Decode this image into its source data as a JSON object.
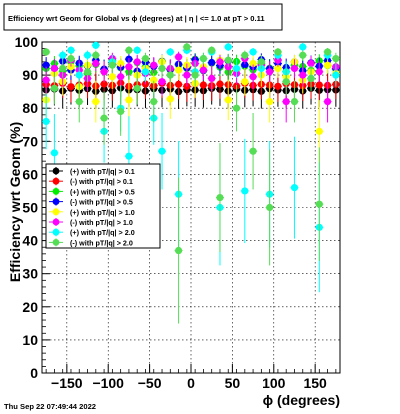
{
  "chart_data": {
    "type": "scatter",
    "title": "Efficiency wrt Geom for Global vs ϕ (degrees) at | η | <= 1.0 at pT > 0.11",
    "xlabel": "ϕ (degrees)",
    "ylabel": "Efficiency wrt Geom (%)",
    "xlim": [
      -180,
      180
    ],
    "ylim": [
      0,
      100
    ],
    "xticks": [
      -150,
      -100,
      -50,
      0,
      50,
      100,
      150
    ],
    "xtick_labels": [
      "−150",
      "−100",
      "−50",
      "0",
      "50",
      "100",
      "150"
    ],
    "yticks": [
      0,
      10,
      20,
      30,
      40,
      50,
      60,
      70,
      80,
      90,
      100
    ],
    "ytick_labels": [
      "0",
      "10",
      "20",
      "30",
      "40",
      "50",
      "60",
      "70",
      "80",
      "90",
      "100"
    ],
    "grid": true,
    "legend_position": "left, middle",
    "timestamp": "Thu Sep 22 07:49:44 2022",
    "series": [
      {
        "name": "(+) with pT/|q| > 0.1",
        "color": "#000000",
        "marker": "circle",
        "x": [
          -175,
          -165,
          -155,
          -145,
          -135,
          -125,
          -115,
          -105,
          -95,
          -85,
          -75,
          -65,
          -55,
          -45,
          -35,
          -25,
          -15,
          -5,
          5,
          15,
          25,
          35,
          45,
          55,
          65,
          75,
          85,
          95,
          105,
          115,
          125,
          135,
          145,
          155,
          165,
          175
        ],
        "y": [
          85.5,
          85.8,
          85.2,
          86.0,
          85.4,
          85.9,
          85.1,
          85.7,
          85.3,
          86.1,
          85.5,
          85.6,
          85.2,
          85.9,
          85.4,
          85.8,
          85.0,
          85.6,
          85.5,
          85.3,
          86.0,
          85.7,
          85.2,
          85.8,
          85.4,
          85.6,
          85.1,
          85.9,
          85.5,
          85.3,
          85.7,
          85.2,
          86.0,
          85.4,
          85.6,
          85.5
        ]
      },
      {
        "name": "(-) with pT/|q| > 0.1",
        "color": "#ff0000",
        "marker": "circle",
        "x": [
          -175,
          -165,
          -155,
          -145,
          -135,
          -125,
          -115,
          -105,
          -95,
          -85,
          -75,
          -65,
          -55,
          -45,
          -35,
          -25,
          -15,
          -5,
          5,
          15,
          25,
          35,
          45,
          55,
          65,
          75,
          85,
          95,
          105,
          115,
          125,
          135,
          145,
          155,
          165,
          175
        ],
        "y": [
          87.2,
          86.8,
          87.5,
          86.5,
          87.0,
          87.4,
          86.7,
          87.3,
          86.9,
          87.6,
          86.6,
          87.1,
          87.3,
          86.8,
          87.5,
          86.9,
          87.2,
          86.6,
          87.4,
          87.0,
          86.8,
          87.3,
          87.1,
          86.7,
          87.5,
          86.9,
          87.2,
          87.0,
          86.6,
          87.4,
          87.1,
          86.8,
          87.3,
          87.0,
          86.9,
          87.2
        ]
      },
      {
        "name": "(+) with pT/|q| > 0.5",
        "color": "#00ee00",
        "marker": "circle",
        "x": [
          -175,
          -165,
          -155,
          -145,
          -135,
          -125,
          -115,
          -105,
          -95,
          -85,
          -75,
          -65,
          -55,
          -45,
          -35,
          -25,
          -15,
          -5,
          5,
          15,
          25,
          35,
          45,
          55,
          65,
          75,
          85,
          95,
          105,
          115,
          125,
          135,
          145,
          155,
          165,
          175
        ],
        "y": [
          92.0,
          93.5,
          91.2,
          94.0,
          92.8,
          90.5,
          93.2,
          91.8,
          94.5,
          92.2,
          91.0,
          93.8,
          92.5,
          90.8,
          94.2,
          91.5,
          93.0,
          92.0,
          94.8,
          91.3,
          93.6,
          92.4,
          90.9,
          94.1,
          92.7,
          91.6,
          93.4,
          92.1,
          94.6,
          91.1,
          93.0,
          92.6,
          91.4,
          94.3,
          92.9,
          91.7
        ]
      },
      {
        "name": "(-) with pT/|q| > 0.5",
        "color": "#0000ff",
        "marker": "circle",
        "x": [
          -175,
          -165,
          -155,
          -145,
          -135,
          -125,
          -115,
          -105,
          -95,
          -85,
          -75,
          -65,
          -55,
          -45,
          -35,
          -25,
          -15,
          -5,
          5,
          15,
          25,
          35,
          45,
          55,
          65,
          75,
          85,
          95,
          105,
          115,
          125,
          135,
          145,
          155,
          165,
          175
        ],
        "y": [
          93.0,
          92.0,
          94.2,
          91.5,
          93.6,
          92.8,
          94.5,
          91.8,
          93.2,
          92.4,
          94.8,
          91.2,
          93.9,
          92.6,
          94.1,
          91.7,
          93.3,
          92.2,
          94.6,
          91.4,
          93.8,
          92.9,
          94.3,
          91.6,
          93.1,
          92.5,
          94.7,
          91.9,
          93.5,
          92.3,
          94.0,
          91.3,
          93.7,
          92.7,
          94.4,
          92.0
        ]
      },
      {
        "name": "(+) with pT/|q| > 1.0",
        "color": "#ffff00",
        "marker": "circle",
        "x": [
          -175,
          -165,
          -155,
          -145,
          -135,
          -125,
          -115,
          -105,
          -95,
          -85,
          -75,
          -65,
          -55,
          -45,
          -35,
          -25,
          -15,
          -5,
          5,
          15,
          25,
          35,
          45,
          55,
          65,
          75,
          85,
          95,
          105,
          115,
          125,
          135,
          145,
          155,
          165,
          175
        ],
        "y": [
          82.5,
          90.5,
          88.0,
          92.5,
          86.5,
          93.0,
          82.0,
          91.0,
          89.5,
          93.5,
          82.5,
          90.0,
          92.0,
          88.5,
          94.0,
          82.8,
          91.5,
          93.0,
          87.5,
          92.5,
          89.0,
          94.5,
          82.5,
          91.5,
          88.0,
          93.5,
          90.0,
          82.0,
          92.0,
          89.5,
          94.0,
          88.5,
          91.0,
          73.0,
          93.0,
          90.5
        ]
      },
      {
        "name": "(-) with pT/|q| > 1.0",
        "color": "#ff00ff",
        "marker": "circle",
        "x": [
          -175,
          -165,
          -155,
          -145,
          -135,
          -125,
          -115,
          -105,
          -95,
          -85,
          -75,
          -65,
          -55,
          -45,
          -35,
          -25,
          -15,
          -5,
          5,
          15,
          25,
          35,
          45,
          55,
          65,
          75,
          85,
          95,
          105,
          115,
          125,
          135,
          145,
          155,
          165,
          175
        ],
        "y": [
          88.5,
          92.0,
          90.0,
          94.5,
          91.5,
          89.0,
          93.5,
          91.0,
          95.0,
          89.5,
          92.5,
          94.0,
          90.5,
          93.0,
          88.0,
          92.0,
          95.5,
          90.0,
          93.5,
          91.5,
          89.0,
          94.0,
          92.5,
          90.5,
          95.0,
          89.5,
          93.0,
          91.0,
          94.5,
          82.0,
          92.0,
          90.0,
          93.5,
          91.0,
          82.0,
          92.5
        ]
      },
      {
        "name": "(+) with pT/|q| > 2.0",
        "color": "#00ffff",
        "marker": "circle",
        "x": [
          -175,
          -165,
          -155,
          -145,
          -135,
          -125,
          -115,
          -105,
          -95,
          -85,
          -75,
          -65,
          -55,
          -45,
          -35,
          -25,
          -15,
          -5,
          5,
          15,
          25,
          35,
          45,
          55,
          65,
          75,
          85,
          95,
          105,
          115,
          125,
          135,
          145,
          155,
          165,
          175
        ],
        "y": [
          76.0,
          66.5,
          96.0,
          97.5,
          90.0,
          96.0,
          99.0,
          73.0,
          94.0,
          80.0,
          65.5,
          97.5,
          91.0,
          77.0,
          67.0,
          97.0,
          54.0,
          97.5,
          91.0,
          95.0,
          97.0,
          50.0,
          98.5,
          92.0,
          55.0,
          97.0,
          92.0,
          54.0,
          96.0,
          91.0,
          56.0,
          98.5,
          89.0,
          44.0,
          96.0,
          90.0
        ]
      },
      {
        "name": "(-) with pT/|q| > 2.0",
        "color": "#55dd55",
        "marker": "circle",
        "x": [
          -175,
          -165,
          -155,
          -145,
          -135,
          -125,
          -115,
          -105,
          -95,
          -85,
          -75,
          -65,
          -55,
          -45,
          -35,
          -25,
          -15,
          -5,
          5,
          15,
          25,
          35,
          45,
          55,
          65,
          75,
          85,
          95,
          105,
          115,
          125,
          135,
          145,
          155,
          165,
          175
        ],
        "y": [
          97.0,
          86.0,
          92.0,
          95.0,
          82.0,
          91.0,
          96.0,
          77.0,
          93.0,
          79.0,
          97.5,
          86.0,
          95.0,
          82.0,
          92.0,
          90.0,
          37.0,
          98.5,
          90.0,
          95.0,
          97.5,
          53.0,
          94.5,
          80.0,
          96.0,
          67.0,
          94.0,
          50.0,
          97.0,
          88.0,
          82.0,
          96.0,
          89.0,
          51.0,
          97.0,
          95.0
        ]
      }
    ]
  }
}
